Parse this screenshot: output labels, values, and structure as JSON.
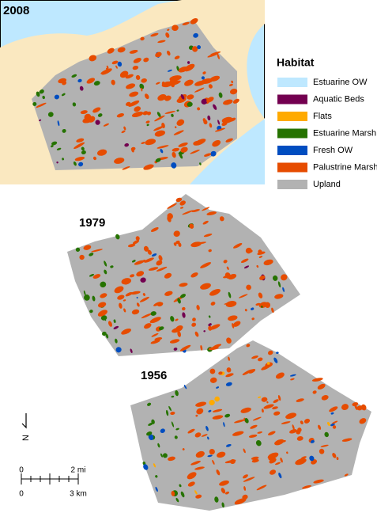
{
  "panels": [
    {
      "year": "2008"
    },
    {
      "year": "1979"
    },
    {
      "year": "1956"
    }
  ],
  "legend": {
    "title": "Habitat",
    "items": [
      {
        "name": "Estuarine OW",
        "color": "#bee8ff"
      },
      {
        "name": "Aquatic Beds",
        "color": "#730050"
      },
      {
        "name": "Flats",
        "color": "#ffaa00"
      },
      {
        "name": "Estuarine Marsh",
        "color": "#267300"
      },
      {
        "name": "Fresh OW",
        "color": "#004dc0"
      },
      {
        "name": "Palustrine Marsh",
        "color": "#e64c00"
      },
      {
        "name": "Upland",
        "color": "#b2b2b2"
      }
    ]
  },
  "north_arrow": "N",
  "scale_bar": {
    "miles": [
      "0",
      "2 mi"
    ],
    "kilometers": [
      "0",
      "3 km"
    ]
  }
}
